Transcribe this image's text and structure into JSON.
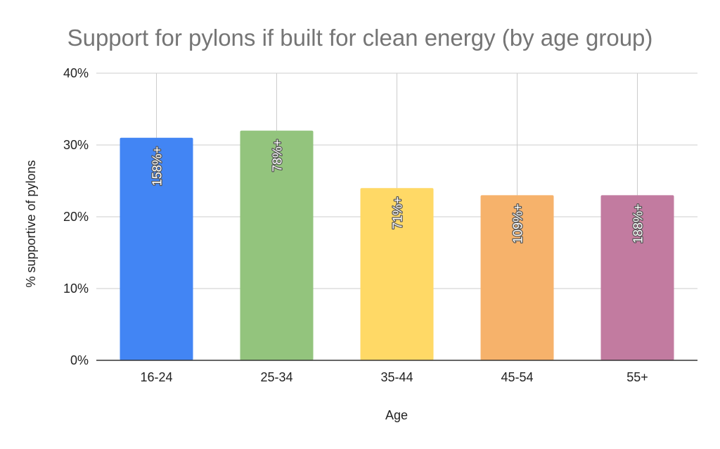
{
  "chart_data": {
    "type": "bar",
    "title": "Support for pylons if built for clean energy (by age group)",
    "xlabel": "Age",
    "ylabel": "% supportive of pylons",
    "categories": [
      "16-24",
      "25-34",
      "35-44",
      "45-54",
      "55+"
    ],
    "values": [
      31,
      32,
      24,
      23,
      23
    ],
    "data_labels": [
      "158%+",
      "78%+",
      "71%+",
      "109%+",
      "188%+"
    ],
    "bar_colors": [
      "#4285f4",
      "#93c47d",
      "#ffd966",
      "#f6b26b",
      "#c27ba0"
    ],
    "ylim": [
      0,
      40
    ],
    "yticks": [
      0,
      10,
      20,
      30,
      40
    ],
    "ytick_labels": [
      "0%",
      "10%",
      "20%",
      "30%",
      "40%"
    ],
    "grid": true,
    "legend": "none"
  }
}
